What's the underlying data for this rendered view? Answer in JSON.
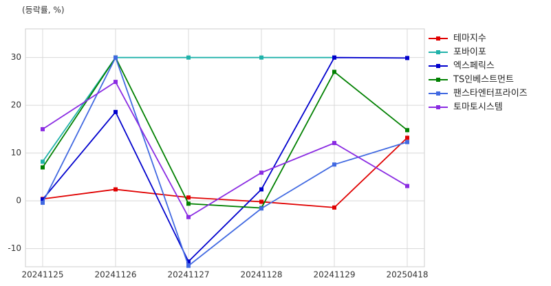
{
  "chart_data": {
    "type": "line",
    "y_label": "(등락률, %)",
    "categories": [
      "20241125",
      "20241126",
      "20241127",
      "20241128",
      "20241129",
      "20250418"
    ],
    "series": [
      {
        "name": "테마지수",
        "color": "#e00000",
        "values": [
          0.4,
          2.4,
          0.7,
          -0.2,
          -1.4,
          13.2
        ]
      },
      {
        "name": "포바이포",
        "color": "#20b2aa",
        "values": [
          8.2,
          30,
          30,
          30,
          30,
          null
        ]
      },
      {
        "name": "엑스페릭스",
        "color": "#0000cd",
        "values": [
          0.3,
          18.6,
          -12.7,
          2.4,
          30,
          29.9
        ]
      },
      {
        "name": "TS인베스트먼트",
        "color": "#008000",
        "values": [
          7.0,
          30,
          -0.6,
          -1.5,
          27,
          14.8
        ]
      },
      {
        "name": "팬스타엔터프라이즈",
        "color": "#4169e1",
        "values": [
          -0.4,
          30,
          -13.6,
          -1.6,
          7.6,
          12.3
        ]
      },
      {
        "name": "토마토시스템",
        "color": "#8a2be2",
        "values": [
          15,
          24.9,
          -3.4,
          5.9,
          12.1,
          3.1
        ]
      }
    ],
    "ylim": [
      -13.8,
      36
    ],
    "yticks": [
      -10,
      0,
      10,
      20,
      30
    ],
    "grid": true,
    "legend": "right"
  }
}
